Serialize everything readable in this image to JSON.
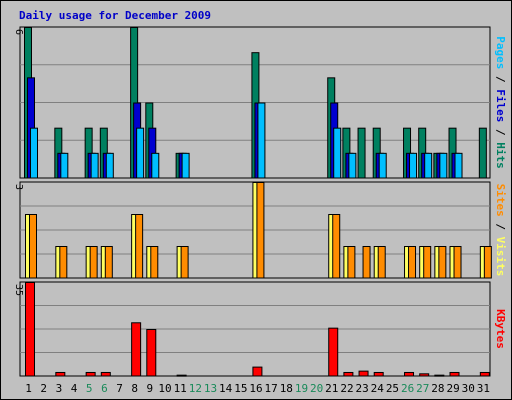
{
  "chart_data": {
    "type": "bar",
    "title": "Daily usage for December 2009",
    "categories": [
      "1",
      "2",
      "3",
      "4",
      "5",
      "6",
      "7",
      "8",
      "9",
      "10",
      "11",
      "12",
      "13",
      "14",
      "15",
      "16",
      "17",
      "18",
      "19",
      "20",
      "21",
      "22",
      "23",
      "24",
      "25",
      "26",
      "27",
      "28",
      "29",
      "30",
      "31"
    ],
    "weekend_days": [
      "5",
      "6",
      "12",
      "13",
      "19",
      "20",
      "26",
      "27"
    ],
    "colors": {
      "background": "#c0c0c0",
      "weekday_label": "#000000",
      "weekend_label": "#1a8a5a",
      "title": "#0000c8",
      "pages": "#00bfff",
      "files": "#0000d0",
      "hits": "#008060",
      "visits": "#ffff60",
      "sites": "#ff8c00",
      "kbytes": "#ff0000"
    },
    "panels": [
      {
        "name": "hits-files-pages",
        "ymax_label": "6",
        "ylim": [
          0,
          6
        ],
        "legend": [
          "Pages",
          "Files",
          "Hits"
        ],
        "series": [
          {
            "name": "Hits",
            "values": [
              6,
              0,
              2,
              0,
              2,
              2,
              0,
              6,
              3,
              0,
              1,
              0,
              0,
              0,
              0,
              5,
              0,
              0,
              0,
              0,
              4,
              2,
              2,
              2,
              0,
              2,
              2,
              1,
              2,
              0,
              2
            ]
          },
          {
            "name": "Files",
            "values": [
              4,
              0,
              1,
              0,
              1,
              1,
              0,
              3,
              2,
              0,
              1,
              0,
              0,
              0,
              0,
              3,
              0,
              0,
              0,
              0,
              3,
              1,
              0,
              1,
              0,
              1,
              1,
              1,
              1,
              0,
              0
            ]
          },
          {
            "name": "Pages",
            "values": [
              2,
              0,
              1,
              0,
              1,
              1,
              0,
              2,
              1,
              0,
              1,
              0,
              0,
              0,
              0,
              3,
              0,
              0,
              0,
              0,
              2,
              1,
              0,
              1,
              0,
              1,
              1,
              1,
              1,
              0,
              0
            ]
          }
        ]
      },
      {
        "name": "visits-sites",
        "ymax_label": "3",
        "ylim": [
          0,
          3
        ],
        "legend": [
          "Sites",
          "Visits"
        ],
        "series": [
          {
            "name": "Visits",
            "values": [
              2,
              0,
              1,
              0,
              1,
              1,
              0,
              2,
              1,
              0,
              1,
              0,
              0,
              0,
              0,
              3,
              0,
              0,
              0,
              0,
              2,
              1,
              0,
              1,
              0,
              1,
              1,
              1,
              1,
              0,
              1
            ]
          },
          {
            "name": "Sites",
            "values": [
              2,
              0,
              1,
              0,
              1,
              1,
              0,
              2,
              1,
              0,
              1,
              0,
              0,
              0,
              0,
              3,
              0,
              0,
              0,
              0,
              2,
              1,
              1,
              1,
              0,
              1,
              1,
              1,
              1,
              0,
              1
            ]
          }
        ]
      },
      {
        "name": "kbytes",
        "ymax_label": "35",
        "ylim": [
          0,
          35
        ],
        "legend": [
          "KBytes"
        ],
        "series": [
          {
            "name": "KBytes",
            "values": [
              35,
              0,
              1.5,
              0,
              1.5,
              1.5,
              0,
              20,
              17.5,
              0,
              0.5,
              0,
              0,
              0,
              0,
              3.5,
              0,
              0,
              0,
              0,
              18,
              1.5,
              2,
              1.5,
              0,
              1.5,
              1,
              0.5,
              1.5,
              0,
              1.5
            ]
          }
        ]
      }
    ]
  }
}
